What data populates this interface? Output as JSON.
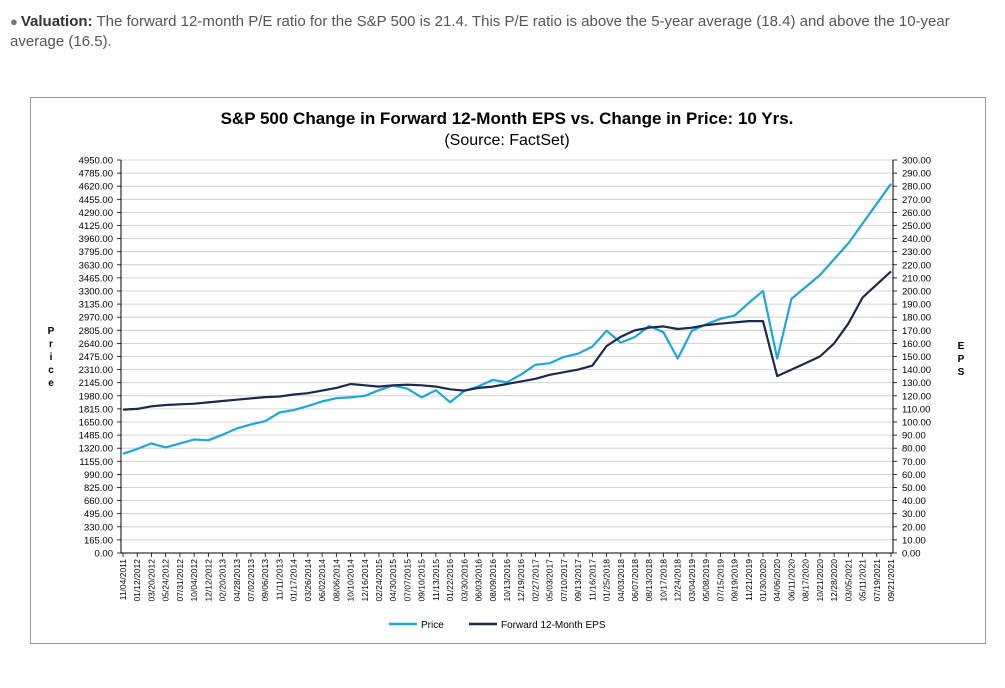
{
  "paragraph": {
    "label": "Valuation:",
    "text": "The forward 12-month P/E ratio for the S&P 500 is 21.4. This P/E ratio is above the 5-year average (18.4) and above the 10-year average (16.5)."
  },
  "colors": {
    "price": "#1aa7e0",
    "eps": "#1a2a4a",
    "grid": "#c8c8c8",
    "axis": "#000000"
  },
  "chart_data": {
    "type": "line",
    "title": "S&P 500 Change in Forward 12-Month EPS vs. Change in Price: 10 Yrs.",
    "subtitle": "(Source: FactSet)",
    "left_axis_letters": [
      "P",
      "r",
      "i",
      "c",
      "e"
    ],
    "right_axis_letters": [
      "E",
      "P",
      "S"
    ],
    "left_ticks": [
      "4950.00",
      "4785.00",
      "4620.00",
      "4455.00",
      "4290.00",
      "4125.00",
      "3960.00",
      "3795.00",
      "3630.00",
      "3465.00",
      "3300.00",
      "3135.00",
      "2970.00",
      "2805.00",
      "2640.00",
      "2475.00",
      "2310.00",
      "2145.00",
      "1980.00",
      "1815.00",
      "1650.00",
      "1485.00",
      "1320.00",
      "1155.00",
      "990.00",
      "825.00",
      "660.00",
      "495.00",
      "330.00",
      "165.00",
      "0.00"
    ],
    "right_ticks": [
      "300.00",
      "290.00",
      "280.00",
      "270.00",
      "260.00",
      "250.00",
      "240.00",
      "230.00",
      "220.00",
      "210.00",
      "200.00",
      "190.00",
      "180.00",
      "170.00",
      "160.00",
      "150.00",
      "140.00",
      "130.00",
      "120.00",
      "110.00",
      "100.00",
      "90.00",
      "80.00",
      "70.00",
      "60.00",
      "50.00",
      "40.00",
      "30.00",
      "20.00",
      "10.00",
      "0.00"
    ],
    "x_ticks": [
      "11/04/2011",
      "01/12/2012",
      "03/20/2012",
      "05/24/2012",
      "07/31/2012",
      "10/04/2012",
      "12/12/2012",
      "02/20/2013",
      "04/28/2013",
      "07/02/2013",
      "09/06/2013",
      "11/11/2013",
      "01/17/2014",
      "03/26/2014",
      "06/02/2014",
      "08/06/2014",
      "10/10/2014",
      "12/16/2014",
      "02/24/2015",
      "04/30/2015",
      "07/07/2015",
      "09/10/2015",
      "11/13/2015",
      "01/22/2016",
      "03/30/2016",
      "06/03/2016",
      "08/09/2016",
      "10/13/2016",
      "12/19/2016",
      "02/27/2017",
      "05/03/2017",
      "07/10/2017",
      "09/13/2017",
      "11/16/2017",
      "01/25/2018",
      "04/03/2018",
      "06/07/2018",
      "08/13/2018",
      "10/17/2018",
      "12/24/2018",
      "03/04/2019",
      "05/08/2019",
      "07/15/2019",
      "09/19/2019",
      "11/21/2019",
      "01/30/2020",
      "04/06/2020",
      "06/11/2020",
      "08/17/2020",
      "10/21/2020",
      "12/28/2020",
      "03/05/2021",
      "05/11/2021",
      "07/19/2021",
      "09/21/2021"
    ],
    "ylim_left": [
      0,
      4950
    ],
    "ylim_right": [
      0,
      300
    ],
    "series": [
      {
        "name": "Price",
        "axis": "left",
        "values": [
          1250,
          1310,
          1380,
          1330,
          1380,
          1430,
          1420,
          1490,
          1570,
          1620,
          1660,
          1770,
          1800,
          1850,
          1910,
          1950,
          1960,
          1980,
          2050,
          2110,
          2070,
          1960,
          2050,
          1900,
          2040,
          2100,
          2180,
          2150,
          2250,
          2370,
          2390,
          2470,
          2510,
          2600,
          2800,
          2650,
          2720,
          2860,
          2780,
          2450,
          2800,
          2880,
          2950,
          2990,
          3150,
          3300,
          2450,
          3200,
          3350,
          3500,
          3700,
          3900,
          4150,
          4400,
          4650
        ]
      },
      {
        "name": "Forward 12-Month EPS",
        "axis": "right",
        "values": [
          109.5,
          110,
          112,
          113,
          113.5,
          114,
          115,
          116,
          117,
          118,
          119,
          119.5,
          121,
          122,
          124,
          126,
          129,
          128,
          127,
          128,
          128.5,
          128,
          127,
          125,
          124,
          126,
          127,
          129,
          131,
          133,
          136,
          138,
          140,
          143,
          158,
          165,
          170,
          172,
          173,
          171,
          172,
          174,
          175,
          176,
          177,
          177,
          135,
          140,
          145,
          150,
          160,
          175,
          195,
          205,
          215
        ]
      }
    ],
    "legend": [
      "Price",
      "Forward 12-Month EPS"
    ],
    "legend_position": "bottom"
  }
}
